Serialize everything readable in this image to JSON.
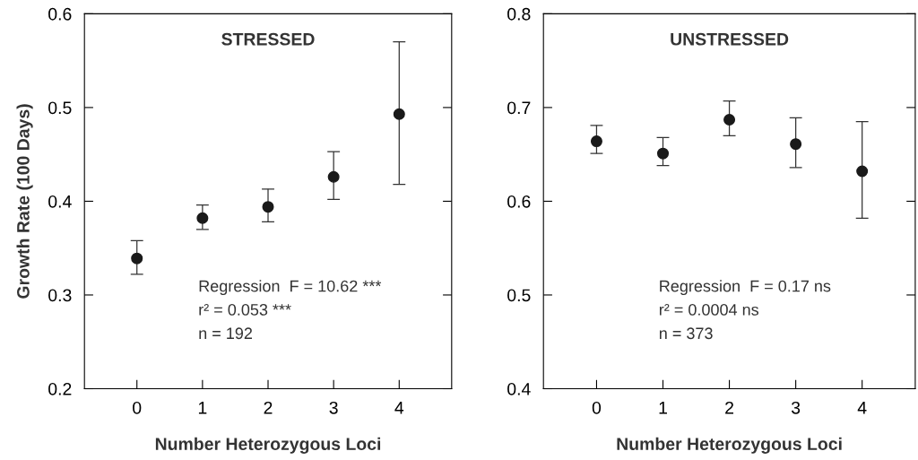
{
  "chart_data": [
    {
      "type": "scatter",
      "title": "STRESSED",
      "xlabel": "Number Heterozygous Loci",
      "ylabel": "Growth Rate (100 Days)",
      "x": [
        0,
        1,
        2,
        3,
        4
      ],
      "values": [
        0.339,
        0.382,
        0.394,
        0.426,
        0.493
      ],
      "color": "#1a1a1a",
      "marker": "circle",
      "errors": [
        [
          0.322,
          0.358
        ],
        [
          0.37,
          0.396
        ],
        [
          0.378,
          0.413
        ],
        [
          0.402,
          0.453
        ],
        [
          0.418,
          0.57
        ]
      ],
      "xlim": [
        -0.8,
        4.8
      ],
      "xticks": [
        0,
        1,
        2,
        3,
        4
      ],
      "ylim": [
        0.2,
        0.6
      ],
      "yticks": [
        0.2,
        0.3,
        0.4,
        0.5,
        0.6
      ],
      "grid": false,
      "annotations": [
        "Regression  F = 10.62 ***",
        "r² = 0.053 ***",
        "n = 192"
      ]
    },
    {
      "type": "scatter",
      "title": "UNSTRESSED",
      "xlabel": "Number Heterozygous Loci",
      "x": [
        0,
        1,
        2,
        3,
        4
      ],
      "values": [
        0.664,
        0.651,
        0.687,
        0.661,
        0.632
      ],
      "color": "#1a1a1a",
      "marker": "circle",
      "errors": [
        [
          0.651,
          0.681
        ],
        [
          0.638,
          0.668
        ],
        [
          0.67,
          0.707
        ],
        [
          0.636,
          0.689
        ],
        [
          0.582,
          0.685
        ]
      ],
      "xlim": [
        -0.8,
        4.8
      ],
      "xticks": [
        0,
        1,
        2,
        3,
        4
      ],
      "ylim": [
        0.4,
        0.8
      ],
      "yticks": [
        0.4,
        0.5,
        0.6,
        0.7,
        0.8
      ],
      "grid": false,
      "annotations": [
        "Regression  F = 0.17 ns",
        "r² = 0.0004 ns",
        "n = 373"
      ]
    }
  ]
}
